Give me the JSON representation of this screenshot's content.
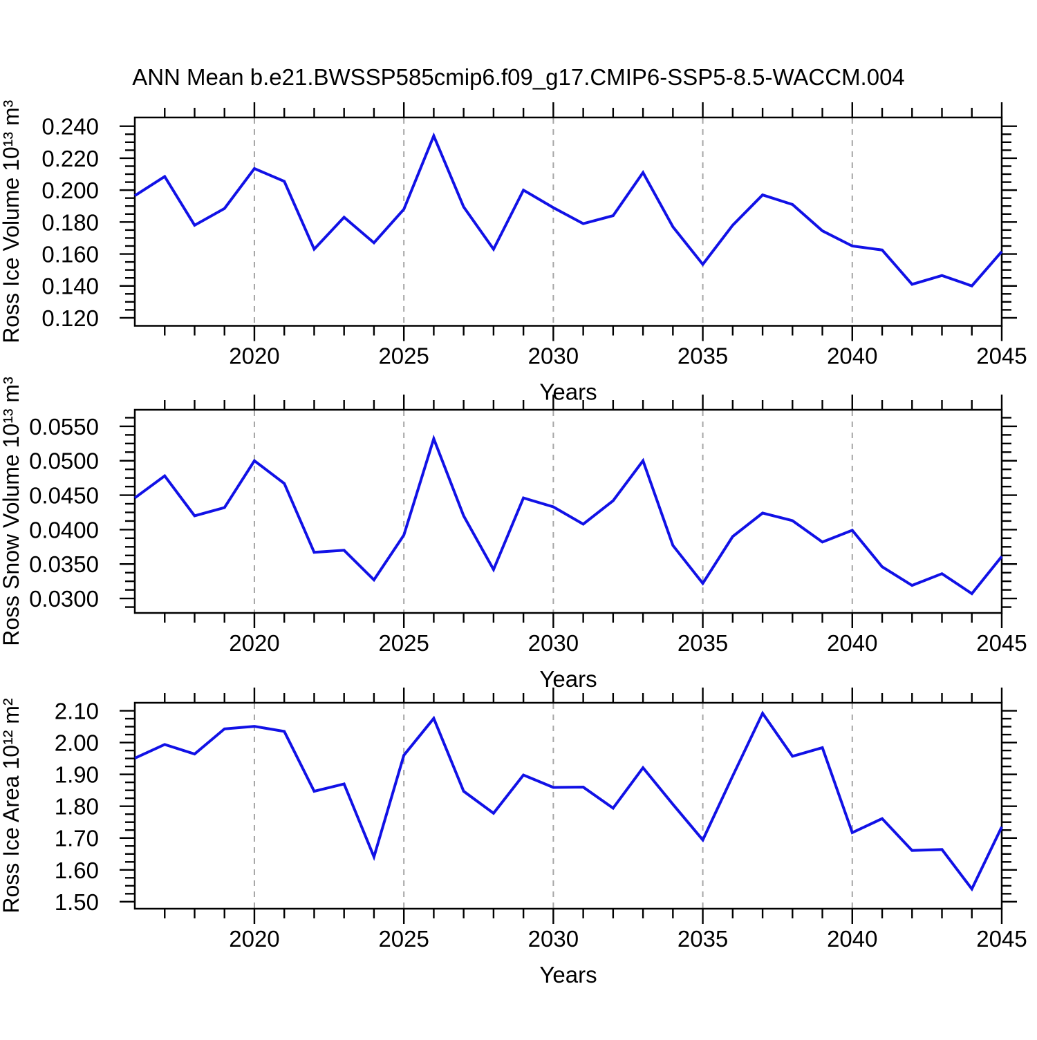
{
  "title": "ANN Mean b.e21.BWSSP585cmip6.f09_g17.CMIP6-SSP5-8.5-WACCM.004",
  "colors": {
    "line": "#1111e6",
    "grid": "#a6a6a6",
    "axis": "#000000",
    "text": "#000000"
  },
  "x_axis": {
    "label": "Years",
    "min": 2016,
    "max": 2045,
    "major_ticks": [
      2020,
      2025,
      2030,
      2035,
      2040,
      2045
    ],
    "major_tick_labels": [
      "2020",
      "2025",
      "2030",
      "2035",
      "2040",
      "2045"
    ],
    "minor_step": 1,
    "gridline_years": [
      2020,
      2025,
      2030,
      2035,
      2040
    ]
  },
  "chart_data": [
    {
      "type": "line",
      "series_name": "Ross Ice Volume",
      "ylabel": "Ross Ice Volume 10¹³ m³",
      "xlabel": "Years",
      "x": [
        2016,
        2017,
        2018,
        2019,
        2020,
        2021,
        2022,
        2023,
        2024,
        2025,
        2026,
        2027,
        2028,
        2029,
        2030,
        2031,
        2032,
        2033,
        2034,
        2035,
        2036,
        2037,
        2038,
        2039,
        2040,
        2041,
        2042,
        2043,
        2044,
        2045
      ],
      "values": [
        0.1965,
        0.2085,
        0.178,
        0.1885,
        0.2135,
        0.2055,
        0.163,
        0.183,
        0.167,
        0.188,
        0.234,
        0.1895,
        0.163,
        0.2,
        0.189,
        0.179,
        0.184,
        0.211,
        0.177,
        0.1535,
        0.178,
        0.197,
        0.191,
        0.1745,
        0.165,
        0.1625,
        0.141,
        0.1465,
        0.14,
        0.1615
      ],
      "ylim": [
        0.115,
        0.2455
      ],
      "y_major_ticks": [
        0.24,
        0.22,
        0.2,
        0.18,
        0.16,
        0.14,
        0.12
      ],
      "y_tick_labels": [
        "0.240",
        "0.220",
        "0.200",
        "0.180",
        "0.160",
        "0.140",
        "0.120"
      ],
      "y_minor_step": 0.005,
      "grid": "vertical-dashed",
      "legend": "none"
    },
    {
      "type": "line",
      "series_name": "Ross Snow Volume",
      "ylabel": "Ross Snow Volume 10¹³ m³",
      "xlabel": "Years",
      "x": [
        2016,
        2017,
        2018,
        2019,
        2020,
        2021,
        2022,
        2023,
        2024,
        2025,
        2026,
        2027,
        2028,
        2029,
        2030,
        2031,
        2032,
        2033,
        2034,
        2035,
        2036,
        2037,
        2038,
        2039,
        2040,
        2041,
        2042,
        2043,
        2044,
        2045
      ],
      "values": [
        0.0446,
        0.0478,
        0.042,
        0.0432,
        0.05,
        0.0467,
        0.0367,
        0.037,
        0.0327,
        0.0392,
        0.0532,
        0.042,
        0.0342,
        0.0446,
        0.0433,
        0.0408,
        0.0442,
        0.05,
        0.0377,
        0.0322,
        0.039,
        0.0424,
        0.0413,
        0.0382,
        0.0399,
        0.0346,
        0.0319,
        0.0336,
        0.0307,
        0.0361
      ],
      "ylim": [
        0.0279,
        0.0574
      ],
      "y_major_ticks": [
        0.055,
        0.05,
        0.045,
        0.04,
        0.035,
        0.03
      ],
      "y_tick_labels": [
        "0.0550",
        "0.0500",
        "0.0450",
        "0.0400",
        "0.0350",
        "0.0300"
      ],
      "y_minor_step": 0.00125,
      "grid": "vertical-dashed",
      "legend": "none"
    },
    {
      "type": "line",
      "series_name": "Ross Ice Area",
      "ylabel": "Ross Ice Area 10¹² m²",
      "xlabel": "Years",
      "x": [
        2016,
        2017,
        2018,
        2019,
        2020,
        2021,
        2022,
        2023,
        2024,
        2025,
        2026,
        2027,
        2028,
        2029,
        2030,
        2031,
        2032,
        2033,
        2034,
        2035,
        2036,
        2037,
        2038,
        2039,
        2040,
        2041,
        2042,
        2043,
        2044,
        2045
      ],
      "values": [
        1.951,
        1.994,
        1.964,
        2.043,
        2.051,
        2.035,
        1.847,
        1.87,
        1.641,
        1.96,
        2.076,
        1.847,
        1.778,
        1.898,
        1.859,
        1.86,
        1.794,
        1.921,
        1.806,
        1.694,
        1.895,
        2.092,
        1.957,
        1.984,
        1.717,
        1.761,
        1.661,
        1.664,
        1.54,
        1.735
      ],
      "ylim": [
        1.478,
        2.125
      ],
      "y_major_ticks": [
        2.1,
        2.0,
        1.9,
        1.8,
        1.7,
        1.6,
        1.5
      ],
      "y_tick_labels": [
        "2.10",
        "2.00",
        "1.90",
        "1.80",
        "1.70",
        "1.60",
        "1.50"
      ],
      "y_minor_step": 0.025,
      "grid": "vertical-dashed",
      "legend": "none"
    }
  ]
}
